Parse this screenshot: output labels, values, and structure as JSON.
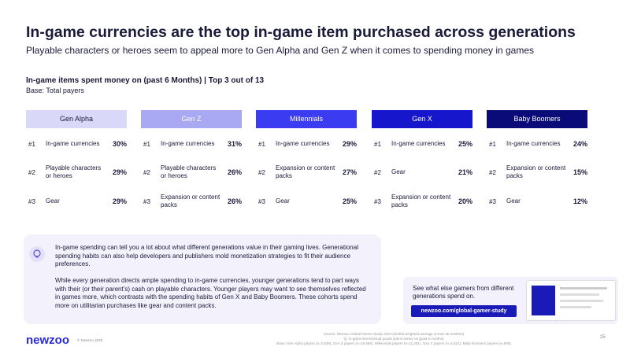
{
  "header": {
    "title": "In-game currencies are the top in-game item purchased across generations",
    "subtitle": "Playable characters or heroes seem to appeal more to Gen Alpha and Gen Z when it comes to spending money in games"
  },
  "section": {
    "heading": "In-game items spent money on (past 6 Months) | Top 3 out of 13",
    "base": "Base: Total payers"
  },
  "columns": [
    {
      "name": "Gen Alpha",
      "items": [
        {
          "rank": "#1",
          "label": "In-game currencies",
          "value": "30%"
        },
        {
          "rank": "#2",
          "label": "Playable characters or heroes",
          "value": "29%"
        },
        {
          "rank": "#3",
          "label": "Gear",
          "value": "29%"
        }
      ]
    },
    {
      "name": "Gen Z",
      "items": [
        {
          "rank": "#1",
          "label": "In-game currencies",
          "value": "31%"
        },
        {
          "rank": "#2",
          "label": "Playable characters or heroes",
          "value": "26%"
        },
        {
          "rank": "#3",
          "label": "Expansion or content packs",
          "value": "26%"
        }
      ]
    },
    {
      "name": "Millennials",
      "items": [
        {
          "rank": "#1",
          "label": "In-game currencies",
          "value": "29%"
        },
        {
          "rank": "#2",
          "label": "Expansion or content packs",
          "value": "27%"
        },
        {
          "rank": "#3",
          "label": "Gear",
          "value": "25%"
        }
      ]
    },
    {
      "name": "Gen X",
      "items": [
        {
          "rank": "#1",
          "label": "In-game currencies",
          "value": "25%"
        },
        {
          "rank": "#2",
          "label": "Gear",
          "value": "21%"
        },
        {
          "rank": "#3",
          "label": "Expansion or content packs",
          "value": "20%"
        }
      ]
    },
    {
      "name": "Baby Boomers",
      "items": [
        {
          "rank": "#1",
          "label": "In-game currencies",
          "value": "24%"
        },
        {
          "rank": "#2",
          "label": "Expansion or content packs",
          "value": "15%"
        },
        {
          "rank": "#3",
          "label": "Gear",
          "value": "12%"
        }
      ]
    }
  ],
  "insight": {
    "paragraphs": [
      "In-game spending can tell you a lot about what different generations value in their gaming lives. Generational spending habits can also help developers and publishers mold monetization strategies to fit their audience preferences.",
      "While every generation directs ample spending to in-game currencies, younger generations tend to part ways with their (or their parent’s) cash on playable characters. Younger players may want to see themselves reflected in games more, which contrasts with the spending habits of Gen X and Baby Boomers. These cohorts spend more on utilitarian purchases like gear and content packs."
    ]
  },
  "promo": {
    "text": "See what else gamers from different generations spend on.",
    "link": "newzoo.com/global-gamer-study"
  },
  "footer": {
    "logo": "newzoo",
    "copyright": "© Newzoo 2025",
    "source": [
      "Source: Newzoo Global Gamer Study 2023 (Global weighted average across 36 markets)",
      "Q: In-game items/virtual goods spent money on (past 6 months)",
      "Base: Gen Alpha payers (n=2,538), Gen Z payers (n=10,565), Millennials payers (n=11,291), Gen X payers (n=4,524), Baby Boomers payers (n=588)"
    ],
    "page": "25"
  }
}
